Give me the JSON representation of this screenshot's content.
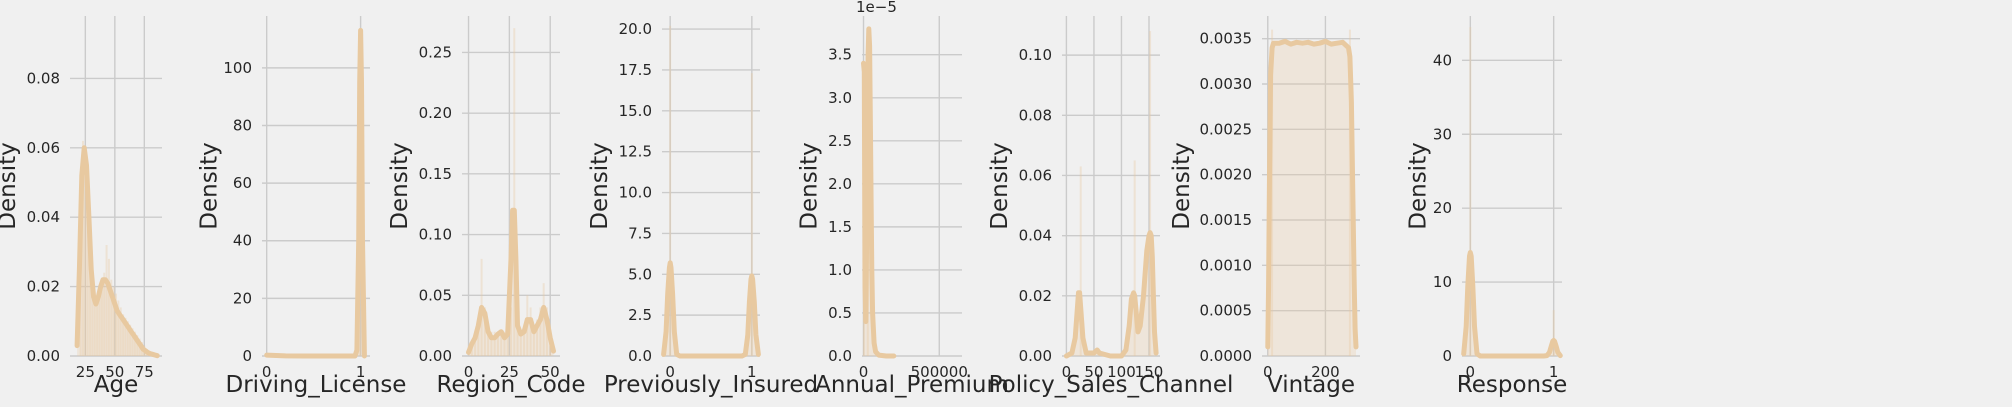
{
  "chart_data": [
    {
      "type": "area",
      "xlabel": "Age",
      "ylabel": "Density",
      "xlim": [
        12,
        90
      ],
      "ylim": [
        0,
        0.098
      ],
      "xticks": [
        25,
        50,
        75
      ],
      "xtick_labels": [
        "25",
        "50",
        "75"
      ],
      "yticks": [
        0,
        0.02,
        0.04,
        0.06,
        0.08
      ],
      "ytick_labels": [
        "0.00",
        "0.02",
        "0.04",
        "0.06",
        "0.08"
      ],
      "color": "#e8c9a0",
      "kde": {
        "x": [
          18,
          20,
          22,
          24,
          26,
          28,
          30,
          32,
          34,
          36,
          38,
          40,
          42,
          44,
          46,
          48,
          50,
          52,
          54,
          56,
          58,
          60,
          62,
          64,
          66,
          68,
          70,
          72,
          74,
          76,
          78,
          80,
          82,
          84,
          86
        ],
        "y": [
          0.003,
          0.025,
          0.052,
          0.06,
          0.055,
          0.04,
          0.025,
          0.017,
          0.015,
          0.017,
          0.02,
          0.022,
          0.022,
          0.021,
          0.019,
          0.017,
          0.015,
          0.013,
          0.012,
          0.011,
          0.01,
          0.009,
          0.008,
          0.007,
          0.006,
          0.005,
          0.004,
          0.003,
          0.002,
          0.0015,
          0.001,
          0.0007,
          0.0005,
          0.0003,
          0.0001
        ]
      },
      "hist": {
        "x": [
          21,
          23,
          25,
          27,
          29,
          31,
          33,
          35,
          37,
          39,
          41,
          43,
          45,
          47,
          49,
          51,
          53,
          55,
          57,
          59,
          61,
          63,
          65,
          67,
          69,
          71,
          73,
          75,
          77,
          79,
          81,
          83,
          85
        ],
        "y": [
          0.04,
          0.062,
          0.06,
          0.045,
          0.03,
          0.02,
          0.016,
          0.016,
          0.018,
          0.021,
          0.024,
          0.032,
          0.028,
          0.022,
          0.02,
          0.018,
          0.016,
          0.014,
          0.012,
          0.011,
          0.01,
          0.009,
          0.008,
          0.007,
          0.006,
          0.005,
          0.004,
          0.003,
          0.002,
          0.0015,
          0.001,
          0.0007,
          0.0004
        ]
      }
    },
    {
      "type": "area",
      "xlabel": "Driving_License",
      "ylabel": "Density",
      "xlim": [
        -0.05,
        1.1
      ],
      "ylim": [
        0,
        118
      ],
      "xticks": [
        0,
        1
      ],
      "xtick_labels": [
        "0",
        "1"
      ],
      "yticks": [
        0,
        20,
        40,
        60,
        80,
        100
      ],
      "ytick_labels": [
        "0",
        "20",
        "40",
        "60",
        "80",
        "100"
      ],
      "color": "#e8c9a0",
      "kde": {
        "x": [
          0,
          0.2,
          0.4,
          0.6,
          0.8,
          0.9,
          0.94,
          0.96,
          0.98,
          0.99,
          1.0,
          1.01,
          1.02,
          1.04
        ],
        "y": [
          0.3,
          0.05,
          0,
          0,
          0,
          0,
          0,
          2,
          40,
          95,
          113,
          95,
          40,
          0
        ]
      },
      "hist": {
        "x": [
          0.99
        ],
        "y": [
          113
        ]
      }
    },
    {
      "type": "area",
      "xlabel": "Region_Code",
      "ylabel": "Density",
      "xlim": [
        -4,
        56
      ],
      "ylim": [
        0,
        0.28
      ],
      "xticks": [
        0,
        25,
        50
      ],
      "xtick_labels": [
        "0",
        "25",
        "50"
      ],
      "yticks": [
        0,
        0.05,
        0.1,
        0.15,
        0.2,
        0.25
      ],
      "ytick_labels": [
        "0.00",
        "0.05",
        "0.10",
        "0.15",
        "0.20",
        "0.25"
      ],
      "color": "#e8c9a0",
      "kde": {
        "x": [
          0,
          2,
          4,
          6,
          8,
          10,
          12,
          14,
          16,
          18,
          20,
          22,
          24,
          26,
          27,
          28,
          29,
          30,
          32,
          34,
          36,
          38,
          40,
          42,
          44,
          46,
          48,
          50,
          52
        ],
        "y": [
          0.003,
          0.01,
          0.015,
          0.025,
          0.04,
          0.035,
          0.02,
          0.015,
          0.015,
          0.018,
          0.02,
          0.015,
          0.018,
          0.08,
          0.12,
          0.12,
          0.08,
          0.025,
          0.018,
          0.02,
          0.03,
          0.03,
          0.02,
          0.025,
          0.03,
          0.04,
          0.03,
          0.015,
          0.004
        ]
      },
      "hist": {
        "x": [
          2,
          4,
          6,
          8,
          10,
          12,
          14,
          16,
          18,
          20,
          22,
          24,
          26,
          28,
          30,
          32,
          34,
          36,
          38,
          40,
          42,
          44,
          46,
          48,
          50
        ],
        "y": [
          0.01,
          0.02,
          0.03,
          0.08,
          0.04,
          0.02,
          0.02,
          0.02,
          0.02,
          0.02,
          0.02,
          0.02,
          0.04,
          0.27,
          0.03,
          0.02,
          0.02,
          0.05,
          0.04,
          0.02,
          0.03,
          0.04,
          0.06,
          0.04,
          0.02
        ]
      }
    },
    {
      "type": "area",
      "xlabel": "Previously_Insured",
      "ylabel": "Density",
      "xlim": [
        -0.1,
        1.1
      ],
      "ylim": [
        0,
        20.8
      ],
      "xticks": [
        0,
        1
      ],
      "xtick_labels": [
        "0",
        "1"
      ],
      "yticks": [
        0,
        2.5,
        5,
        7.5,
        10,
        12.5,
        15,
        17.5,
        20
      ],
      "ytick_labels": [
        "0.0",
        "2.5",
        "5.0",
        "7.5",
        "10.0",
        "12.5",
        "15.0",
        "17.5",
        "20.0"
      ],
      "color": "#e8c9a0",
      "kde": {
        "x": [
          -0.08,
          -0.05,
          -0.03,
          -0.01,
          0,
          0.01,
          0.03,
          0.05,
          0.08,
          0.12,
          0.3,
          0.5,
          0.7,
          0.88,
          0.92,
          0.95,
          0.97,
          0.99,
          1.0,
          1.01,
          1.03,
          1.05,
          1.08
        ],
        "y": [
          0.1,
          1.5,
          3.8,
          5.4,
          5.7,
          5.4,
          3.8,
          1.5,
          0.1,
          0,
          0,
          0,
          0,
          0,
          0.1,
          1.3,
          3.3,
          4.7,
          4.9,
          4.7,
          3.3,
          1.3,
          0.1
        ]
      },
      "hist": {
        "x": [
          0,
          1
        ],
        "y": [
          20.2,
          17.3
        ]
      }
    },
    {
      "type": "area",
      "xlabel": "Annual_Premium",
      "ylabel": "Density",
      "xlim": [
        -10000,
        650000
      ],
      "ylim": [
        0,
        3.95e-05
      ],
      "xticks": [
        0,
        500000
      ],
      "xtick_labels": [
        "0",
        "500000"
      ],
      "yticks": [
        0,
        5e-06,
        1e-05,
        1.5e-05,
        2e-05,
        2.5e-05,
        3e-05,
        3.5e-05
      ],
      "ytick_labels": [
        "0.0",
        "0.5",
        "1.0",
        "1.5",
        "2.0",
        "2.5",
        "3.0",
        "3.5"
      ],
      "offset_text": "1e−5",
      "color": "#e8c9a0",
      "kde": {
        "x": [
          0,
          5000,
          10000,
          15000,
          20000,
          25000,
          30000,
          35000,
          40000,
          45000,
          50000,
          55000,
          60000,
          70000,
          80000,
          100000,
          150000,
          200000
        ],
        "y": [
          3.4e-05,
          3.3e-05,
          8e-06,
          4e-06,
          1.2e-05,
          2.5e-05,
          3.5e-05,
          3.8e-05,
          3.6e-05,
          2.8e-05,
          1.8e-05,
          1e-05,
          5e-06,
          1.5e-06,
          5e-07,
          1e-07,
          0,
          0
        ]
      },
      "hist": {
        "x": [
          2000,
          28000
        ],
        "y": [
          3.4e-05,
          3.8e-05
        ]
      }
    },
    {
      "type": "area",
      "xlabel": "Policy_Sales_Channel",
      "ylabel": "Density",
      "xlim": [
        -8,
        170
      ],
      "ylim": [
        0,
        0.113
      ],
      "xticks": [
        0,
        50,
        100,
        150
      ],
      "xtick_labels": [
        "0",
        "50",
        "100",
        "150"
      ],
      "yticks": [
        0,
        0.02,
        0.04,
        0.06,
        0.08,
        0.1
      ],
      "ytick_labels": [
        "0.00",
        "0.02",
        "0.04",
        "0.06",
        "0.08",
        "0.10"
      ],
      "color": "#e8c9a0",
      "kde": {
        "x": [
          0,
          10,
          16,
          20,
          22,
          24,
          26,
          30,
          36,
          50,
          56,
          60,
          80,
          100,
          108,
          114,
          118,
          122,
          124,
          126,
          130,
          134,
          140,
          146,
          150,
          152,
          154,
          156,
          158,
          160,
          163
        ],
        "y": [
          0,
          0.001,
          0.006,
          0.016,
          0.021,
          0.021,
          0.016,
          0.006,
          0.001,
          0.001,
          0.002,
          0.001,
          0,
          0,
          0.002,
          0.01,
          0.019,
          0.021,
          0.02,
          0.016,
          0.008,
          0.01,
          0.02,
          0.035,
          0.04,
          0.041,
          0.04,
          0.033,
          0.02,
          0.008,
          0.001
        ]
      },
      "hist": {
        "x": [
          26,
          124,
          152
        ],
        "y": [
          0.063,
          0.065,
          0.108
        ]
      }
    },
    {
      "type": "area",
      "xlabel": "Vintage",
      "ylabel": "Density",
      "xlim": [
        -20,
        320
      ],
      "ylim": [
        0,
        0.00375
      ],
      "xticks": [
        0,
        200
      ],
      "xtick_labels": [
        "0",
        "200"
      ],
      "yticks": [
        0,
        0.0005,
        0.001,
        0.0015,
        0.002,
        0.0025,
        0.003,
        0.0035
      ],
      "ytick_labels": [
        "0.0000",
        "0.0005",
        "0.0010",
        "0.0015",
        "0.0020",
        "0.0025",
        "0.0030",
        "0.0035"
      ],
      "color": "#e8c9a0",
      "kde": {
        "x": [
          0,
          3,
          6,
          10,
          15,
          20,
          40,
          60,
          80,
          100,
          120,
          140,
          160,
          180,
          200,
          220,
          240,
          260,
          280,
          285,
          290,
          295,
          300,
          303,
          306
        ],
        "y": [
          0.0001,
          0.0008,
          0.002,
          0.0031,
          0.0034,
          0.00345,
          0.00345,
          0.00347,
          0.00344,
          0.00346,
          0.00345,
          0.00346,
          0.00344,
          0.00345,
          0.00347,
          0.00344,
          0.00345,
          0.00346,
          0.0034,
          0.0033,
          0.0028,
          0.0018,
          0.0008,
          0.0003,
          0.0001
        ]
      },
      "hist": {
        "x": [
          15,
          285
        ],
        "y": [
          0.0036,
          0.0036
        ]
      }
    },
    {
      "type": "area",
      "xlabel": "Response",
      "ylabel": "Density",
      "xlim": [
        -0.1,
        1.1
      ],
      "ylim": [
        0,
        46
      ],
      "xticks": [
        0,
        1
      ],
      "xtick_labels": [
        "0",
        "1"
      ],
      "yticks": [
        0,
        10,
        20,
        30,
        40
      ],
      "ytick_labels": [
        "0",
        "10",
        "20",
        "30",
        "40"
      ],
      "color": "#e8c9a0",
      "kde": {
        "x": [
          -0.08,
          -0.05,
          -0.03,
          -0.01,
          0,
          0.01,
          0.03,
          0.05,
          0.08,
          0.12,
          0.3,
          0.5,
          0.7,
          0.88,
          0.92,
          0.95,
          0.97,
          0.99,
          1.0,
          1.01,
          1.03,
          1.05,
          1.08
        ],
        "y": [
          0.3,
          4,
          9.5,
          13.5,
          14,
          13.5,
          9.5,
          4,
          0.3,
          0,
          0,
          0,
          0,
          0,
          0.05,
          0.5,
          1.3,
          2,
          2.1,
          2,
          1.3,
          0.5,
          0.05
        ]
      },
      "hist": {
        "x": [
          0,
          1
        ],
        "y": [
          44.5,
          6.2
        ]
      }
    }
  ]
}
